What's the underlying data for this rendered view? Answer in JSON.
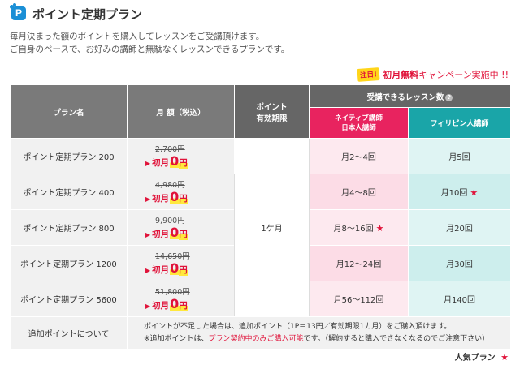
{
  "header": {
    "title": "ポイント定期プラン"
  },
  "description": {
    "line1": "毎月決まった額のポイントを購入してレッスンをご受講頂けます。",
    "line2": "ご自身のペースで、お好みの講師と無駄なくレッスンできるプランです。"
  },
  "campaign": {
    "badge": "注目!",
    "lead": "初月無料",
    "rest": "キャンペーン実施中 !!"
  },
  "table": {
    "headers": {
      "plan": "プラン名",
      "price": "月 額（税込）",
      "validity_line1": "ポイント",
      "validity_line2": "有効期限",
      "lessons": "受講できるレッスン数",
      "native_line1": "ネイティブ講師",
      "native_line2": "日本人講師",
      "phil": "フィリピン人講師"
    },
    "first_month_label": "初月",
    "zero": "0",
    "yen": "円",
    "validity": "1ケ月",
    "rows": [
      {
        "name": "ポイント定期プラン 200",
        "old_price": "2,700円",
        "native": "月2～4回",
        "phil": "月5回"
      },
      {
        "name": "ポイント定期プラン 400",
        "old_price": "4,980円",
        "native": "月4～8回",
        "phil": "月10回"
      },
      {
        "name": "ポイント定期プラン 800",
        "old_price": "9,900円",
        "native": "月8～16回",
        "phil": "月20回"
      },
      {
        "name": "ポイント定期プラン 1200",
        "old_price": "14,650円",
        "native": "月12～24回",
        "phil": "月30回"
      },
      {
        "name": "ポイント定期プラン 5600",
        "old_price": "51,800円",
        "native": "月56～112回",
        "phil": "月140回"
      }
    ],
    "addon": {
      "label": "追加ポイントについて",
      "line1": "ポイントが不足した場合は、追加ポイント（1P＝13円／有効期限1カ月）をご購入頂けます。",
      "line2_pre": "※追加ポイントは、",
      "line2_red": "プラン契約中のみご購入可能",
      "line2_post": "です。（解約すると購入できなくなるのでご注意下さい）"
    }
  },
  "footer": {
    "popular": "人気プラン",
    "star": "★"
  },
  "colors": {
    "accent_red": "#e0133a",
    "native_header": "#e8235f",
    "phil_header": "#1aa5a8",
    "logo_blue": "#1a8fd6"
  },
  "icons": {
    "logo": "point-plan-logo-icon",
    "star": "star-icon",
    "info": "info-icon",
    "arrow": "triangle-right-icon"
  }
}
